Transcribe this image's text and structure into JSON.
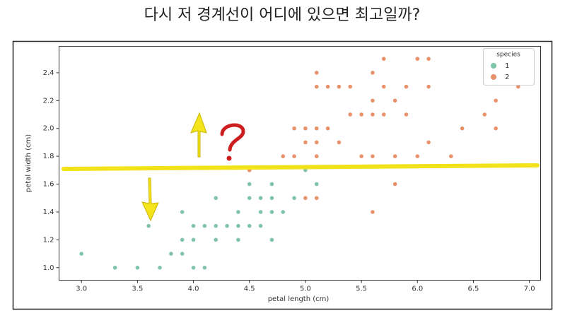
{
  "chart_data": {
    "type": "scatter",
    "title": "다시 저 경계선이 어디에 있으면 최고일까?",
    "x_label": "petal length (cm)",
    "y_label": "petal width (cm)",
    "legend_title": "species",
    "legend_position": "upper right",
    "xlim": [
      2.8,
      7.1
    ],
    "ylim": [
      0.91,
      2.59
    ],
    "xticks": [
      {
        "value": 3,
        "label": "3.0"
      },
      3.5,
      {
        "value": 4,
        "label": "4.0"
      },
      4.5,
      {
        "value": 5,
        "label": "5.0"
      },
      5.5,
      {
        "value": 6,
        "label": "6.0"
      },
      6.5,
      {
        "value": 7,
        "label": "7.0"
      }
    ],
    "yticks": [
      {
        "value": 1,
        "label": "1.0"
      },
      1.2,
      1.4,
      1.6,
      1.8,
      {
        "value": 2,
        "label": "2.0"
      },
      2.2,
      2.4
    ],
    "series": [
      {
        "name": "1",
        "color": "#7fc4a8",
        "x": [
          3.0,
          3.3,
          3.5,
          3.7,
          3.6,
          3.8,
          3.9,
          3.9,
          3.9,
          4.0,
          4.1,
          4.0,
          4.0,
          4.1,
          4.2,
          4.2,
          4.2,
          4.3,
          4.4,
          4.4,
          4.4,
          4.5,
          4.5,
          4.5,
          4.6,
          4.6,
          4.6,
          4.7,
          4.7,
          4.7,
          4.7,
          4.8,
          4.9,
          5.0,
          5.1
        ],
        "y": [
          1.1,
          1.0,
          1.0,
          1.0,
          1.3,
          1.1,
          1.1,
          1.2,
          1.4,
          1.0,
          1.0,
          1.2,
          1.3,
          1.3,
          1.3,
          1.2,
          1.5,
          1.3,
          1.3,
          1.2,
          1.4,
          1.3,
          1.5,
          1.6,
          1.3,
          1.4,
          1.5,
          1.4,
          1.2,
          1.5,
          1.6,
          1.4,
          1.5,
          1.7,
          1.6
        ]
      },
      {
        "name": "2",
        "color": "#e8916a",
        "x": [
          4.5,
          4.8,
          4.9,
          5.0,
          5.1,
          4.9,
          5.0,
          5.1,
          5.0,
          5.1,
          5.1,
          5.2,
          5.1,
          5.1,
          5.2,
          5.3,
          5.4,
          5.3,
          5.4,
          5.5,
          5.6,
          5.6,
          5.6,
          5.5,
          5.6,
          5.6,
          5.7,
          5.7,
          5.7,
          5.8,
          5.8,
          5.8,
          5.9,
          5.9,
          6.0,
          6.0,
          6.1,
          6.1,
          6.1,
          6.3,
          6.4,
          6.6,
          6.7,
          6.7,
          6.9
        ],
        "y": [
          1.7,
          1.8,
          1.8,
          1.5,
          1.5,
          2.0,
          2.0,
          2.0,
          1.9,
          1.9,
          1.8,
          2.0,
          2.3,
          2.4,
          2.3,
          2.3,
          2.3,
          1.9,
          2.1,
          2.1,
          2.1,
          2.2,
          2.4,
          1.8,
          1.8,
          1.4,
          2.1,
          2.3,
          2.5,
          2.2,
          1.8,
          1.6,
          2.3,
          2.1,
          1.8,
          2.5,
          2.5,
          2.3,
          1.9,
          1.8,
          2.0,
          2.1,
          2.2,
          2.0,
          2.3
        ]
      }
    ]
  }
}
